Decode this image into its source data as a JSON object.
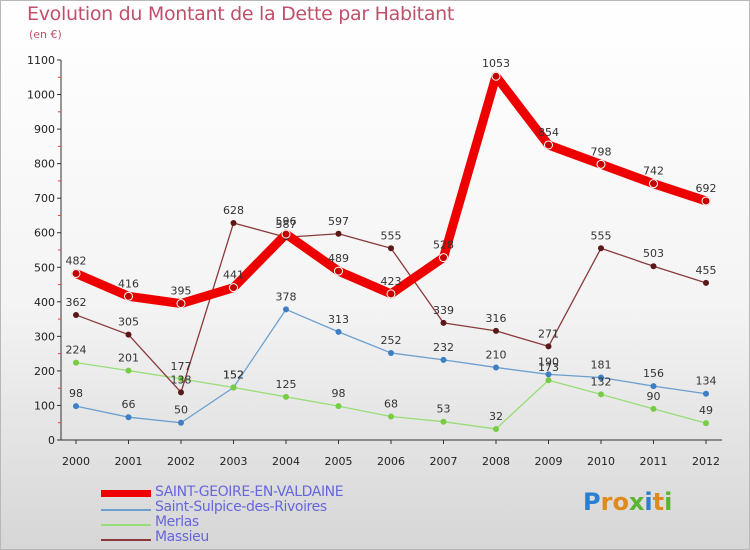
{
  "header": {
    "title": "Evolution du Montant de la Dette par Habitant",
    "subtitle": "(en €)"
  },
  "logo": {
    "text": "Proxiti"
  },
  "chart_data": {
    "type": "line",
    "title": "Evolution du Montant de la Dette par Habitant",
    "subtitle": "(en €)",
    "categories": [
      "2000",
      "2001",
      "2002",
      "2003",
      "2004",
      "2005",
      "2006",
      "2007",
      "2008",
      "2009",
      "2010",
      "2011",
      "2012"
    ],
    "ylim": [
      0,
      1100
    ],
    "yticks": [
      0,
      100,
      200,
      300,
      400,
      500,
      600,
      700,
      800,
      900,
      1000,
      1100
    ],
    "grid": false,
    "legend_position": "bottom-left",
    "series": [
      {
        "name": "SAINT-GEOIRE-EN-VALDAINE",
        "color": "#ee0000",
        "point_color": "#c40000",
        "values": [
          482,
          416,
          395,
          441,
          596,
          489,
          423,
          528,
          1053,
          854,
          798,
          742,
          692
        ],
        "labels": [
          "482",
          "416",
          "395",
          "441",
          "596",
          "489",
          "423",
          "528",
          "1053",
          "854",
          "798",
          "742",
          "692"
        ]
      },
      {
        "name": "Saint-Sulpice-des-Rivoires",
        "color": "#6a9fd0",
        "point_color": "#3d7fc2",
        "values": [
          98,
          66,
          50,
          152,
          378,
          313,
          252,
          232,
          210,
          190,
          181,
          156,
          134
        ],
        "labels": [
          "98",
          "66",
          "50",
          "152",
          "378",
          "313",
          "252",
          "232",
          "210",
          "190",
          "181",
          "156",
          "134"
        ]
      },
      {
        "name": "Merlas",
        "color": "#99dd77",
        "point_color": "#77cc44",
        "values": [
          224,
          201,
          177,
          152,
          125,
          98,
          68,
          53,
          32,
          173,
          132,
          90,
          49
        ],
        "labels": [
          "224",
          "201",
          "177",
          "152",
          "125",
          "98",
          "68",
          "53",
          "32",
          "173",
          "132",
          "90",
          "49"
        ]
      },
      {
        "name": "Massieu",
        "color": "#8a3a3a",
        "point_color": "#5a1818",
        "values": [
          362,
          305,
          138,
          628,
          587,
          597,
          555,
          339,
          316,
          271,
          555,
          503,
          455
        ],
        "labels": [
          "362",
          "305",
          "138",
          "628",
          "587",
          "597",
          "555",
          "339",
          "316",
          "271",
          "555",
          "503",
          "455"
        ]
      }
    ]
  }
}
